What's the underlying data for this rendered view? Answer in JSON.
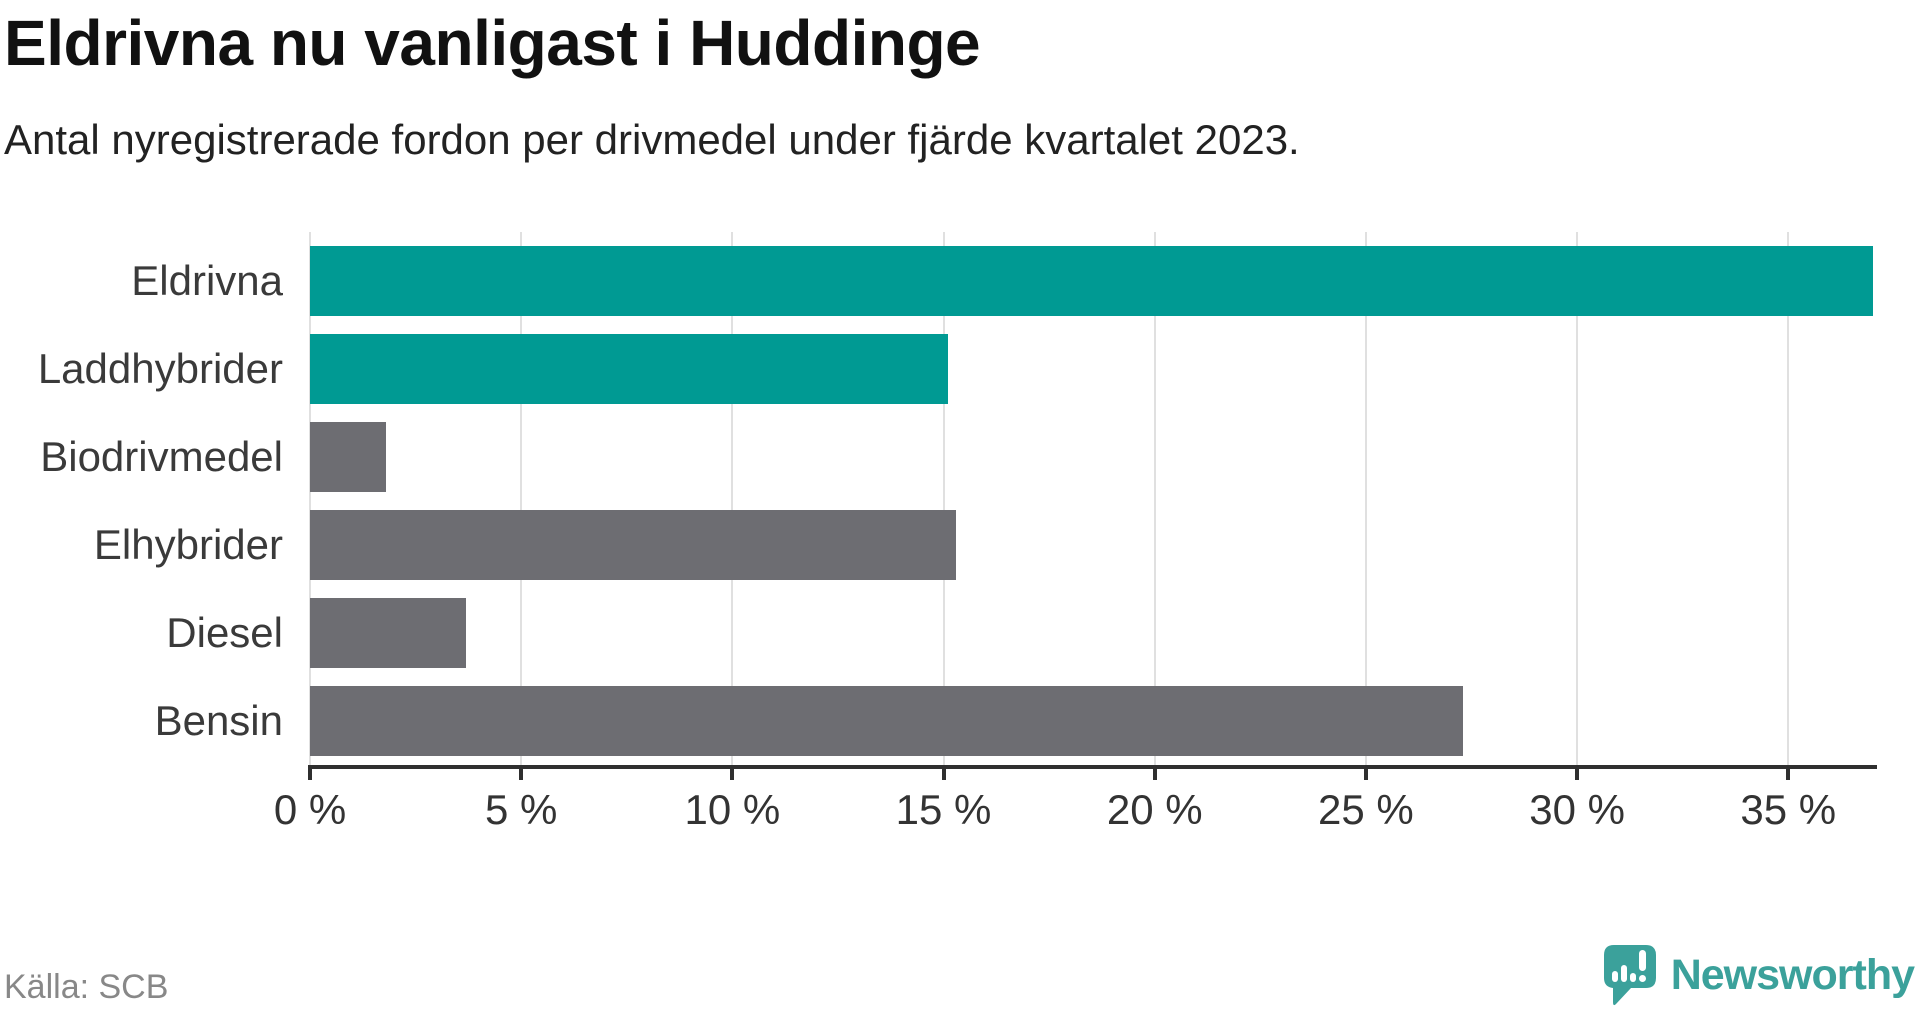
{
  "header": {
    "title": "Eldrivna nu vanligast i Huddinge",
    "subtitle": "Antal nyregistrerade fordon per drivmedel under fjärde kvartalet 2023."
  },
  "chart_data": {
    "type": "bar",
    "orientation": "horizontal",
    "title": "Eldrivna nu vanligast i Huddinge",
    "subtitle": "Antal nyregistrerade fordon per drivmedel under fjärde kvartalet 2023.",
    "categories": [
      "Eldrivna",
      "Laddhybrider",
      "Biodrivmedel",
      "Elhybrider",
      "Diesel",
      "Bensin"
    ],
    "values": [
      37.0,
      15.1,
      1.8,
      15.3,
      3.7,
      27.3
    ],
    "unit": "%",
    "bar_colors": [
      "#009a93",
      "#009a93",
      "#6d6d72",
      "#6d6d72",
      "#6d6d72",
      "#6d6d72"
    ],
    "xlim": [
      0,
      37.1
    ],
    "xticks": [
      0,
      5,
      10,
      15,
      20,
      25,
      30,
      35
    ],
    "xtick_labels": [
      "0 %",
      "5 %",
      "10 %",
      "15 %",
      "20 %",
      "25 %",
      "30 %",
      "35 %"
    ],
    "grid": true,
    "legend": "none",
    "source": "Källa: SCB"
  },
  "footer": {
    "source": "Källa: SCB",
    "logo_text": "Newsworthy"
  },
  "colors": {
    "bar_teal": "#009a93",
    "bar_gray": "#6d6d72",
    "grid": "#e0e0e0",
    "axis": "#2f2f2f",
    "category_label": "#3a3a3a",
    "tick_label": "#333333",
    "source_text": "#888888",
    "logo_teal": "#3ba19b",
    "background": "#ffffff"
  }
}
